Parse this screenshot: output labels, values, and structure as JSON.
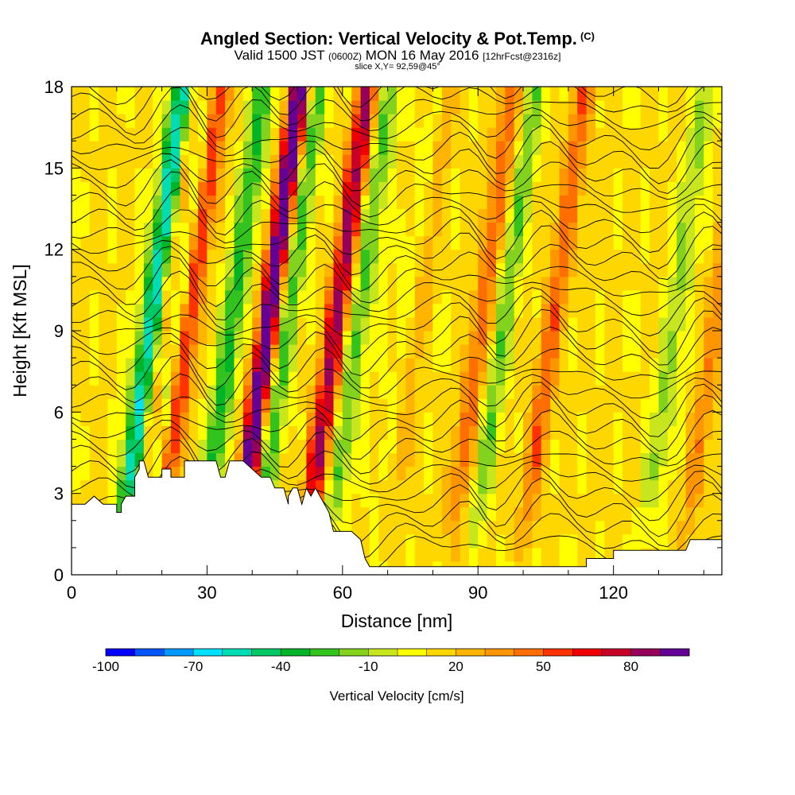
{
  "header": {
    "title": "Angled Section: Vertical Velocity & Pot.Temp.",
    "title_unit": "(C)",
    "valid_prefix": "Valid 1500 JST",
    "valid_utc": "(0600Z)",
    "valid_date": "MON 16 May 2016",
    "forecast": "[12hrFcst@2316z]",
    "slice": "slice X,Y= 92,59@45°"
  },
  "colorbar": {
    "label": "Vertical Velocity [cm/s]",
    "tick_labels": [
      "-100",
      "-70",
      "-40",
      "-10",
      "20",
      "50",
      "80"
    ],
    "colors": [
      "#0000ff",
      "#0055ff",
      "#0099ff",
      "#00e0ff",
      "#00dcb4",
      "#00c864",
      "#00b428",
      "#32c31e",
      "#82d21e",
      "#c8e61e",
      "#ffff00",
      "#ffd700",
      "#ffb400",
      "#ff9600",
      "#ff6e00",
      "#ff3200",
      "#f00000",
      "#c80028",
      "#96005a",
      "#640096"
    ]
  },
  "chart_data": {
    "type": "heatmap",
    "title": "Angled Section: Vertical Velocity & Pot.Temp.",
    "xlabel": "Distance [nm]",
    "ylabel": "Height [Kft MSL]",
    "xlim": [
      0,
      144
    ],
    "ylim": [
      0,
      18
    ],
    "x_ticks": [
      0,
      30,
      60,
      90,
      120
    ],
    "y_ticks": [
      0,
      3,
      6,
      9,
      12,
      15,
      18
    ],
    "color_variable": "Vertical Velocity [cm/s]",
    "color_range": [
      -100,
      100
    ],
    "contour_variable": "Pot.Temp. (C)",
    "terrain": [
      [
        0,
        2.6
      ],
      [
        3,
        2.6
      ],
      [
        5,
        2.9
      ],
      [
        7,
        2.6
      ],
      [
        10,
        2.6
      ],
      [
        10,
        2.3
      ],
      [
        11,
        2.3
      ],
      [
        11,
        2.6
      ],
      [
        12,
        2.9
      ],
      [
        14,
        2.9
      ],
      [
        14,
        3.6
      ],
      [
        15,
        3.9
      ],
      [
        15,
        4.2
      ],
      [
        16,
        4.2
      ],
      [
        17,
        3.6
      ],
      [
        20,
        3.6
      ],
      [
        20,
        3.9
      ],
      [
        22,
        3.9
      ],
      [
        22,
        3.6
      ],
      [
        25,
        3.6
      ],
      [
        25,
        4.2
      ],
      [
        32,
        4.2
      ],
      [
        33,
        3.6
      ],
      [
        34,
        3.6
      ],
      [
        35,
        4.2
      ],
      [
        38,
        4.2
      ],
      [
        40,
        3.9
      ],
      [
        42,
        3.6
      ],
      [
        44,
        3.6
      ],
      [
        45,
        3.2
      ],
      [
        47,
        3.2
      ],
      [
        48,
        2.6
      ],
      [
        48,
        2.9
      ],
      [
        49,
        3.2
      ],
      [
        50,
        3.2
      ],
      [
        51,
        2.6
      ],
      [
        52,
        3.2
      ],
      [
        53,
        2.9
      ],
      [
        54,
        3.2
      ],
      [
        55,
        2.9
      ],
      [
        56,
        2.6
      ],
      [
        57,
        2.3
      ],
      [
        58,
        1.6
      ],
      [
        61,
        1.6
      ],
      [
        62,
        1.6
      ],
      [
        64,
        1.3
      ],
      [
        65,
        0.6
      ],
      [
        66,
        0.3
      ],
      [
        91,
        0.3
      ],
      [
        91,
        0.3
      ],
      [
        114,
        0.3
      ],
      [
        114,
        0.6
      ],
      [
        120,
        0.6
      ],
      [
        120,
        0.9
      ],
      [
        136,
        0.9
      ],
      [
        137,
        1.3
      ],
      [
        144,
        1.3
      ]
    ],
    "updrafts": [
      {
        "x": 19,
        "peak": 85
      },
      {
        "x": 23,
        "peak": 60
      },
      {
        "x": 41,
        "peak": 95
      },
      {
        "x": 56,
        "peak": 70
      },
      {
        "x": 73,
        "peak": 30
      },
      {
        "x": 88,
        "peak": 35
      },
      {
        "x": 104,
        "peak": 35
      },
      {
        "x": 140,
        "peak": 25
      }
    ],
    "downdrafts": [
      {
        "x": 15,
        "peak": -75
      },
      {
        "x": 20,
        "peak": -95
      },
      {
        "x": 33,
        "peak": -45
      },
      {
        "x": 45,
        "peak": -40
      },
      {
        "x": 61,
        "peak": -35
      },
      {
        "x": 72,
        "peak": -25
      },
      {
        "x": 93,
        "peak": -30
      },
      {
        "x": 131,
        "peak": -25
      }
    ]
  }
}
